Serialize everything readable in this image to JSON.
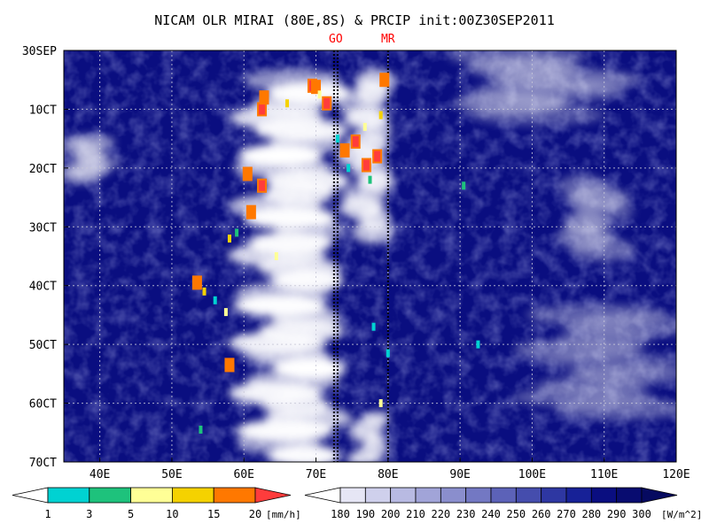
{
  "chart_data": {
    "type": "heatmap",
    "title": "NICAM OLR MIRAI (80E,8S) & PRCIP init:00Z30SEP2011",
    "xlabel": "",
    "ylabel": "",
    "x_ticks": [
      {
        "value": 40,
        "label": "40E"
      },
      {
        "value": 50,
        "label": "50E"
      },
      {
        "value": 60,
        "label": "60E"
      },
      {
        "value": 70,
        "label": "70E"
      },
      {
        "value": 80,
        "label": "80E"
      },
      {
        "value": 90,
        "label": "90E"
      },
      {
        "value": 100,
        "label": "100E"
      },
      {
        "value": 110,
        "label": "110E"
      },
      {
        "value": 120,
        "label": "120E"
      }
    ],
    "y_ticks": [
      {
        "value": 0,
        "label": "30SEP"
      },
      {
        "value": 10,
        "label": "10CT"
      },
      {
        "value": 20,
        "label": "20CT"
      },
      {
        "value": 30,
        "label": "30CT"
      },
      {
        "value": 40,
        "label": "40CT"
      },
      {
        "value": 50,
        "label": "50CT"
      },
      {
        "value": 60,
        "label": "60CT"
      },
      {
        "value": 70,
        "label": "70CT"
      }
    ],
    "xlim": [
      35,
      120
    ],
    "ylim": [
      0,
      70
    ],
    "y_inverted": true,
    "grid": true,
    "markers": [
      {
        "label": "GO",
        "x": [
          72.5,
          73
        ],
        "color": "#ff0000"
      },
      {
        "label": "MR",
        "x": [
          80
        ],
        "color": "#ff0000"
      }
    ],
    "olr_field": {
      "units": "[W/m^2]",
      "background": "#0a0e80",
      "cloud_bands": [
        {
          "x": [
            60,
            73.5
          ],
          "y": [
            4,
            70
          ],
          "peak": 1.0
        },
        {
          "x": [
            74,
            80.5
          ],
          "y": [
            4,
            32
          ],
          "peak": 0.9
        },
        {
          "x": [
            75,
            80
          ],
          "y": [
            62,
            70
          ],
          "peak": 0.85
        },
        {
          "x": [
            35,
            42
          ],
          "y": [
            15,
            22
          ],
          "peak": 0.6
        },
        {
          "x": [
            90,
            112
          ],
          "y": [
            0,
            12
          ],
          "peak": 0.45
        },
        {
          "x": [
            104,
            113
          ],
          "y": [
            22,
            35
          ],
          "peak": 0.45
        },
        {
          "x": [
            100,
            120
          ],
          "y": [
            44,
            62
          ],
          "peak": 0.35
        }
      ]
    },
    "precip_points": [
      {
        "x": 62.5,
        "y": 10,
        "mm": 20
      },
      {
        "x": 62.8,
        "y": 8,
        "mm": 15
      },
      {
        "x": 66,
        "y": 9,
        "mm": 10
      },
      {
        "x": 69.5,
        "y": 6,
        "mm": 20
      },
      {
        "x": 70,
        "y": 6.2,
        "mm": 15
      },
      {
        "x": 70.5,
        "y": 7.5,
        "mm": 5
      },
      {
        "x": 71.5,
        "y": 9,
        "mm": 20
      },
      {
        "x": 73,
        "y": 15,
        "mm": 1
      },
      {
        "x": 74,
        "y": 17,
        "mm": 15
      },
      {
        "x": 75.5,
        "y": 15.5,
        "mm": 20
      },
      {
        "x": 76.8,
        "y": 13,
        "mm": 5
      },
      {
        "x": 77,
        "y": 19.5,
        "mm": 20
      },
      {
        "x": 78.5,
        "y": 18,
        "mm": 20
      },
      {
        "x": 79,
        "y": 11,
        "mm": 10
      },
      {
        "x": 79.5,
        "y": 5,
        "mm": 15
      },
      {
        "x": 77.5,
        "y": 22,
        "mm": 3
      },
      {
        "x": 74.5,
        "y": 20,
        "mm": 1
      },
      {
        "x": 60.5,
        "y": 21,
        "mm": 15
      },
      {
        "x": 62.5,
        "y": 23,
        "mm": 20
      },
      {
        "x": 61,
        "y": 27.5,
        "mm": 15
      },
      {
        "x": 59,
        "y": 31,
        "mm": 3
      },
      {
        "x": 58,
        "y": 32,
        "mm": 10
      },
      {
        "x": 53.5,
        "y": 39.5,
        "mm": 15
      },
      {
        "x": 54.5,
        "y": 41,
        "mm": 10
      },
      {
        "x": 56,
        "y": 42.5,
        "mm": 1
      },
      {
        "x": 57.5,
        "y": 44.5,
        "mm": 5
      },
      {
        "x": 64.5,
        "y": 35,
        "mm": 5
      },
      {
        "x": 58,
        "y": 53.5,
        "mm": 15
      },
      {
        "x": 54,
        "y": 64.5,
        "mm": 3
      },
      {
        "x": 78,
        "y": 47,
        "mm": 1
      },
      {
        "x": 80,
        "y": 51.5,
        "mm": 1
      },
      {
        "x": 92.5,
        "y": 50,
        "mm": 1
      },
      {
        "x": 90.5,
        "y": 23,
        "mm": 3
      },
      {
        "x": 79,
        "y": 60,
        "mm": 5
      }
    ]
  },
  "precip_legend": {
    "labels": [
      "1",
      "3",
      "5",
      "10",
      "15",
      "20"
    ],
    "units": "[mm/h]",
    "colors": [
      "#ffffff",
      "#00d2d2",
      "#1ec27c",
      "#ffff96",
      "#f5d200",
      "#ff7800",
      "#ff3c3c"
    ]
  },
  "olr_legend": {
    "labels": [
      "180",
      "190",
      "200",
      "210",
      "220",
      "230",
      "240",
      "250",
      "260",
      "270",
      "280",
      "290",
      "300"
    ],
    "units": "[W/m^2]",
    "colors": [
      "#ffffff",
      "#e6e6f5",
      "#cfd0ec",
      "#b8bae2",
      "#a1a4d8",
      "#8a8ecd",
      "#7378c3",
      "#5c62b8",
      "#454dad",
      "#2e37a2",
      "#172197",
      "#0a0e80",
      "#080c70",
      "#060a60"
    ]
  }
}
